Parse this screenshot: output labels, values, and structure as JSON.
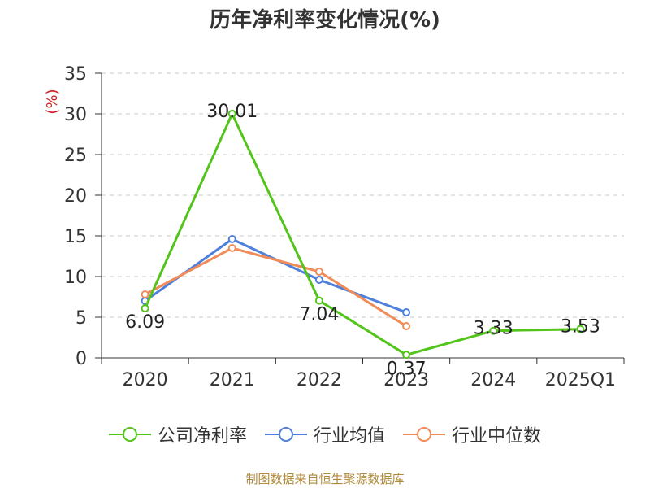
{
  "chart_data": {
    "type": "line",
    "title": "历年净利率变化情况(%)",
    "ylabel": "(%)",
    "categories": [
      "2020",
      "2021",
      "2022",
      "2023",
      "2024",
      "2025Q1"
    ],
    "ylim": [
      0,
      35
    ],
    "yticks": [
      0,
      5,
      10,
      15,
      20,
      25,
      30,
      35
    ],
    "grid": true,
    "legend_position": "bottom",
    "series": [
      {
        "name": "公司净利率",
        "color": "#52c41a",
        "values": [
          6.09,
          30.01,
          7.04,
          0.37,
          3.33,
          3.53
        ],
        "labels": [
          "6.09",
          "30.01",
          "7.04",
          "0.37",
          "3.33",
          "3.53"
        ]
      },
      {
        "name": "行业均值",
        "color": "#4e7fdb",
        "values": [
          7.0,
          14.6,
          9.6,
          5.6,
          null,
          null
        ]
      },
      {
        "name": "行业中位数",
        "color": "#f08c5a",
        "values": [
          7.8,
          13.5,
          10.6,
          3.9,
          null,
          null
        ]
      }
    ]
  },
  "source_note": "制图数据来自恒生聚源数据库"
}
